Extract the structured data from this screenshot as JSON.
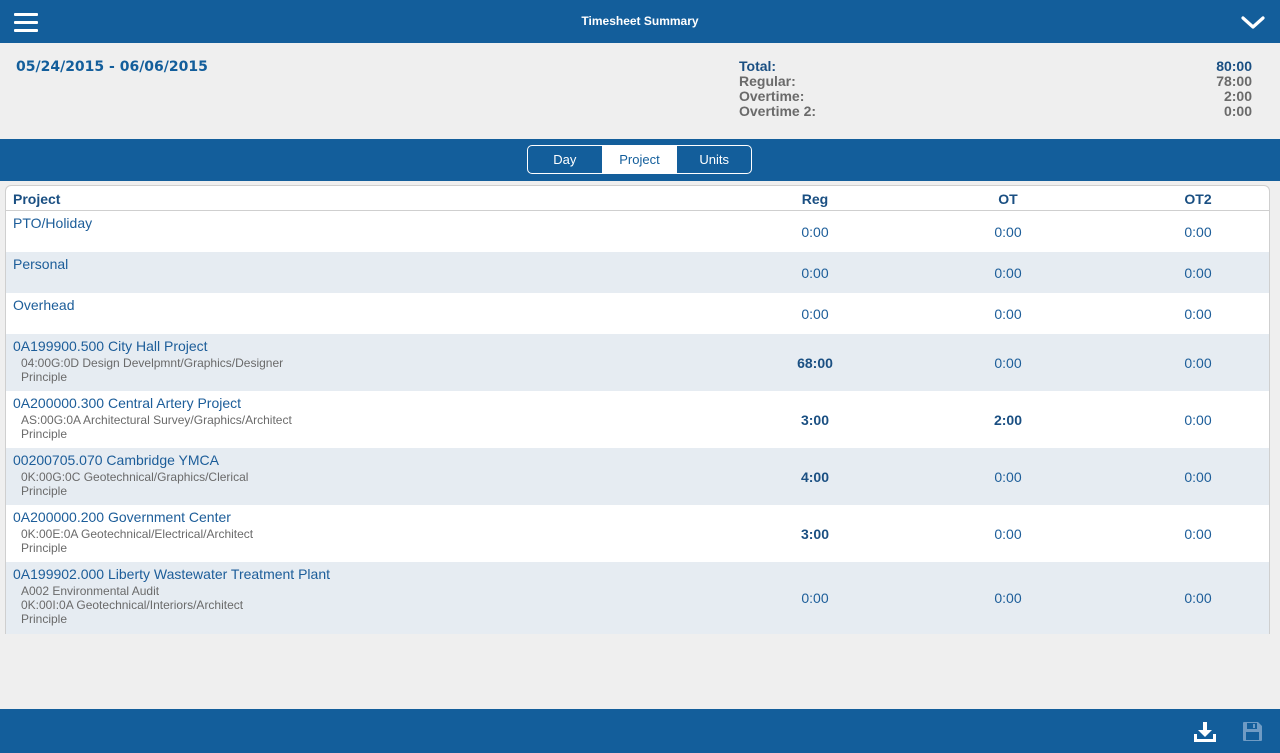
{
  "header": {
    "title": "Timesheet Summary",
    "menu_icon": "hamburger-icon",
    "collapse_icon": "chevron-down-icon"
  },
  "summary": {
    "date_range": "05/24/2015 - 06/06/2015",
    "totals": [
      {
        "label": "Total:",
        "value": "80:00"
      },
      {
        "label": "Regular:",
        "value": "78:00"
      },
      {
        "label": "Overtime:",
        "value": "2:00"
      },
      {
        "label": "Overtime 2:",
        "value": "0:00"
      }
    ]
  },
  "tabs": [
    {
      "label": "Day",
      "active": false
    },
    {
      "label": "Project",
      "active": true
    },
    {
      "label": "Units",
      "active": false
    }
  ],
  "table": {
    "headers": {
      "project": "Project",
      "reg": "Reg",
      "ot": "OT",
      "ot2": "OT2"
    },
    "rows": [
      {
        "name": "PTO/Holiday",
        "details": [],
        "reg": "0:00",
        "ot": "0:00",
        "ot2": "0:00"
      },
      {
        "name": "Personal",
        "details": [],
        "reg": "0:00",
        "ot": "0:00",
        "ot2": "0:00"
      },
      {
        "name": "Overhead",
        "details": [],
        "reg": "0:00",
        "ot": "0:00",
        "ot2": "0:00"
      },
      {
        "name": "0A199900.500 City Hall Project",
        "details": [
          "04:00G:0D Design Develpmnt/Graphics/Designer",
          "Principle"
        ],
        "reg": "68:00",
        "ot": "0:00",
        "ot2": "0:00"
      },
      {
        "name": "0A200000.300 Central Artery Project",
        "details": [
          "AS:00G:0A Architectural Survey/Graphics/Architect",
          "Principle"
        ],
        "reg": "3:00",
        "ot": "2:00",
        "ot2": "0:00"
      },
      {
        "name": "00200705.070 Cambridge YMCA",
        "details": [
          "0K:00G:0C Geotechnical/Graphics/Clerical",
          "Principle"
        ],
        "reg": "4:00",
        "ot": "0:00",
        "ot2": "0:00"
      },
      {
        "name": "0A200000.200 Government Center",
        "details": [
          "0K:00E:0A Geotechnical/Electrical/Architect",
          "Principle"
        ],
        "reg": "3:00",
        "ot": "0:00",
        "ot2": "0:00"
      },
      {
        "name": "0A199902.000 Liberty Wastewater Treatment Plant",
        "details": [
          "A002 Environmental Audit",
          "0K:00I:0A Geotechnical/Interiors/Architect",
          "Principle"
        ],
        "reg": "0:00",
        "ot": "0:00",
        "ot2": "0:00"
      }
    ]
  },
  "footer": {
    "download_icon": "download-icon",
    "save_icon": "save-icon"
  },
  "colors": {
    "primary": "#135e9b",
    "row_alt": "#e6ecf2",
    "muted_text": "#6a6a6a"
  }
}
